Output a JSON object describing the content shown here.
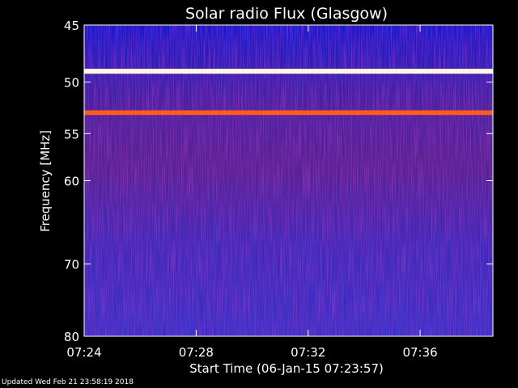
{
  "chart_data": {
    "type": "heatmap",
    "title": "Solar radio Flux (Glasgow)",
    "xlabel": "Start Time (06-Jan-15 07:23:57)",
    "ylabel": "Frequency [MHz]",
    "x_ticks": [
      "07:24",
      "07:28",
      "07:32",
      "07:36"
    ],
    "x_tick_minutes": [
      24,
      28,
      32,
      36
    ],
    "xlim_minutes": [
      24,
      38.6
    ],
    "y_ticks": [
      45,
      50,
      55,
      60,
      70,
      80
    ],
    "ylim": [
      45,
      80
    ],
    "y_scale": "log",
    "colormap": [
      "#1010ff",
      "#5a2fb0",
      "#a0202a",
      "#ff4a10",
      "#ffd060",
      "#ffffff"
    ],
    "bands": [
      {
        "freq_start": 48.9,
        "freq_end": 49.2,
        "level": "white"
      },
      {
        "freq_start": 52.8,
        "freq_end": 53.1,
        "level": "orange"
      }
    ]
  },
  "footer": {
    "updated": "Updated Wed Feb 21 23:58:19 2018"
  }
}
